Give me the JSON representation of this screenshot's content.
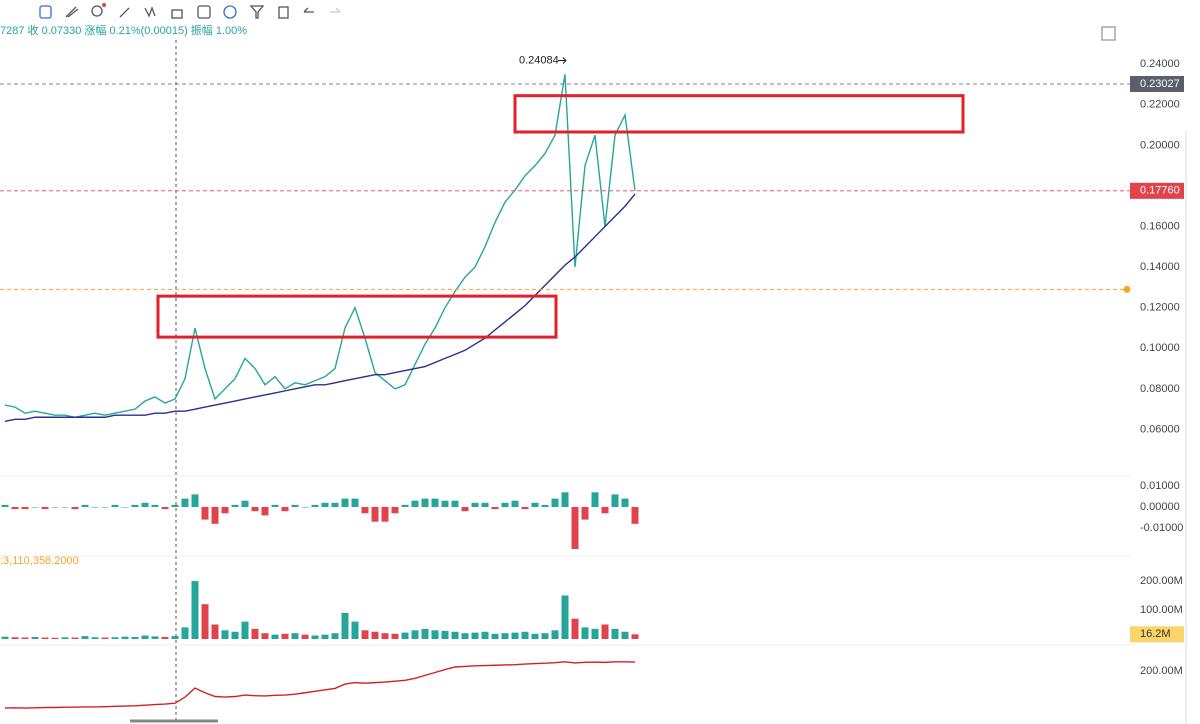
{
  "header": {
    "info": "7287 收 0.07330 涨幅 0.21%(0.00015) 振幅 1.00%"
  },
  "chart_data": [
    {
      "type": "line",
      "ylim": [
        0.04,
        0.248
      ],
      "yticks": [
        {
          "value": 0.06,
          "label": "0.06000"
        },
        {
          "value": 0.08,
          "label": "0.08000"
        },
        {
          "value": 0.1,
          "label": "0.10000"
        },
        {
          "value": 0.12,
          "label": "0.12000"
        },
        {
          "value": 0.14,
          "label": "0.14000"
        },
        {
          "value": 0.16,
          "label": "0.16000"
        },
        {
          "value": 0.2,
          "label": "0.20000"
        },
        {
          "value": 0.22,
          "label": "0.22000"
        },
        {
          "value": 0.24,
          "label": "0.24000"
        }
      ],
      "series": [
        {
          "color": "#26a69a",
          "values": [
            0.072,
            0.071,
            0.068,
            0.069,
            0.068,
            0.067,
            0.067,
            0.066,
            0.067,
            0.068,
            0.067,
            0.068,
            0.069,
            0.07,
            0.074,
            0.076,
            0.073,
            0.075,
            0.085,
            0.11,
            0.09,
            0.075,
            0.08,
            0.085,
            0.095,
            0.09,
            0.082,
            0.086,
            0.08,
            0.083,
            0.082,
            0.084,
            0.086,
            0.09,
            0.11,
            0.12,
            0.105,
            0.088,
            0.084,
            0.08,
            0.082,
            0.092,
            0.102,
            0.11,
            0.12,
            0.128,
            0.135,
            0.14,
            0.15,
            0.162,
            0.172,
            0.178,
            0.185,
            0.19,
            0.196,
            0.205,
            0.235,
            0.14,
            0.19,
            0.205,
            0.16,
            0.205,
            0.215,
            0.1776
          ]
        },
        {
          "color": "#2b2f8c",
          "values": [
            0.064,
            0.065,
            0.065,
            0.066,
            0.066,
            0.066,
            0.066,
            0.066,
            0.066,
            0.066,
            0.066,
            0.067,
            0.067,
            0.067,
            0.067,
            0.068,
            0.068,
            0.069,
            0.069,
            0.07,
            0.071,
            0.072,
            0.073,
            0.074,
            0.075,
            0.076,
            0.077,
            0.078,
            0.079,
            0.08,
            0.081,
            0.082,
            0.082,
            0.083,
            0.084,
            0.085,
            0.086,
            0.087,
            0.087,
            0.088,
            0.089,
            0.09,
            0.091,
            0.093,
            0.095,
            0.097,
            0.099,
            0.102,
            0.105,
            0.109,
            0.113,
            0.117,
            0.121,
            0.126,
            0.131,
            0.136,
            0.141,
            0.145,
            0.15,
            0.155,
            0.16,
            0.165,
            0.17,
            0.176
          ]
        }
      ],
      "price_lines": [
        {
          "value": 0.23027,
          "label": "0.23027",
          "color": "#5a5f6b"
        },
        {
          "value": 0.1776,
          "label": "0.17760",
          "color": "#e0434b"
        }
      ],
      "alert_line": {
        "value": 0.129,
        "color": "#f5a623"
      },
      "high_annotation": {
        "value": 0.24084,
        "label": "0.24084"
      },
      "zones": [
        {
          "high": 0.2245,
          "low": 0.2066,
          "color": "#e0202a"
        },
        {
          "high": 0.1257,
          "low": 0.1055,
          "color": "#e0202a"
        }
      ]
    },
    {
      "type": "bar",
      "ylim": [
        -0.021,
        0.015
      ],
      "yticks": [
        {
          "value": -0.01,
          "label": "-0.01000"
        },
        {
          "value": 0,
          "label": "0.00000"
        },
        {
          "value": 0.01,
          "label": "0.01000"
        }
      ],
      "values": [
        0.001,
        -0.001,
        -0.001,
        0.0,
        -0.001,
        0.0,
        0.0,
        -0.001,
        0.001,
        0.0,
        0.0,
        0.001,
        0.0,
        0.001,
        0.002,
        0.001,
        -0.001,
        0.001,
        0.004,
        0.006,
        -0.006,
        -0.008,
        -0.003,
        0.001,
        0.003,
        -0.002,
        -0.004,
        0.001,
        -0.002,
        0.001,
        0.0,
        0.001,
        0.002,
        0.002,
        0.004,
        0.004,
        -0.003,
        -0.007,
        -0.007,
        -0.003,
        0.001,
        0.003,
        0.004,
        0.004,
        0.003,
        0.003,
        -0.002,
        0.002,
        0.002,
        -0.001,
        0.002,
        0.003,
        -0.001,
        0.002,
        0.001,
        0.004,
        0.007,
        -0.02,
        -0.006,
        0.007,
        -0.003,
        0.006,
        0.004,
        -0.008
      ]
    },
    {
      "type": "bar",
      "ylim": [
        0,
        238
      ],
      "subtitle": ":3,110,358.2000",
      "yticks": [
        {
          "value": 100,
          "label": "100.00M"
        },
        {
          "value": 200,
          "label": "200.00M"
        }
      ],
      "values": [
        8,
        6,
        5,
        7,
        5,
        4,
        6,
        5,
        10,
        6,
        5,
        6,
        8,
        7,
        12,
        9,
        7,
        10,
        40,
        200,
        120,
        50,
        30,
        25,
        60,
        35,
        20,
        15,
        18,
        20,
        15,
        12,
        15,
        20,
        90,
        60,
        30,
        25,
        20,
        18,
        22,
        30,
        35,
        30,
        28,
        25,
        20,
        22,
        25,
        18,
        20,
        22,
        25,
        18,
        20,
        30,
        150,
        70,
        40,
        35,
        50,
        35,
        25,
        16.2
      ],
      "last_label": "16.2M"
    },
    {
      "type": "line",
      "ylim": [
        17,
        290
      ],
      "yticks": [
        {
          "value": 200,
          "label": "200.00M"
        }
      ],
      "series": [
        {
          "color": "#d0202a",
          "values": [
            72,
            73,
            72,
            73,
            74,
            74,
            75,
            75,
            76,
            76,
            77,
            78,
            79,
            80,
            82,
            84,
            86,
            89,
            110,
            141,
            125,
            112,
            110,
            112,
            117,
            115,
            114,
            116,
            117,
            120,
            125,
            130,
            135,
            140,
            155,
            160,
            158,
            160,
            162,
            165,
            168,
            175,
            185,
            195,
            205,
            214,
            216,
            218,
            219,
            220,
            221,
            222,
            224,
            226,
            227,
            229,
            232,
            228,
            230,
            231,
            230,
            232,
            232,
            231
          ]
        }
      ]
    }
  ]
}
